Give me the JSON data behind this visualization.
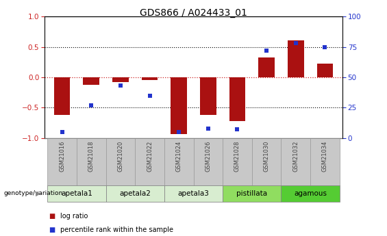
{
  "title": "GDS866 / A024433_01",
  "samples": [
    "GSM21016",
    "GSM21018",
    "GSM21020",
    "GSM21022",
    "GSM21024",
    "GSM21026",
    "GSM21028",
    "GSM21030",
    "GSM21032",
    "GSM21034"
  ],
  "log_ratio": [
    -0.62,
    -0.12,
    -0.08,
    -0.05,
    -0.93,
    -0.62,
    -0.72,
    0.33,
    0.61,
    0.22
  ],
  "percentile_rank": [
    5,
    27,
    43,
    35,
    5,
    8,
    7,
    72,
    78,
    75
  ],
  "groups": [
    {
      "name": "apetala1",
      "indices": [
        0,
        1
      ],
      "color": "#d8edd0"
    },
    {
      "name": "apetala2",
      "indices": [
        2,
        3
      ],
      "color": "#d8edd0"
    },
    {
      "name": "apetala3",
      "indices": [
        4,
        5
      ],
      "color": "#d8edd0"
    },
    {
      "name": "pistillata",
      "indices": [
        6,
        7
      ],
      "color": "#90dd60"
    },
    {
      "name": "agamous",
      "indices": [
        8,
        9
      ],
      "color": "#55cc33"
    }
  ],
  "bar_color": "#aa1111",
  "dot_color": "#2233cc",
  "ylim_left": [
    -1,
    1
  ],
  "ylim_right": [
    0,
    100
  ],
  "yticks_left": [
    -1,
    -0.5,
    0,
    0.5,
    1
  ],
  "yticks_right": [
    0,
    25,
    50,
    75,
    100
  ],
  "bg_color": "#ffffff",
  "bar_width": 0.55,
  "sample_box_color": "#c8c8c8",
  "sample_text_color": "#444444"
}
